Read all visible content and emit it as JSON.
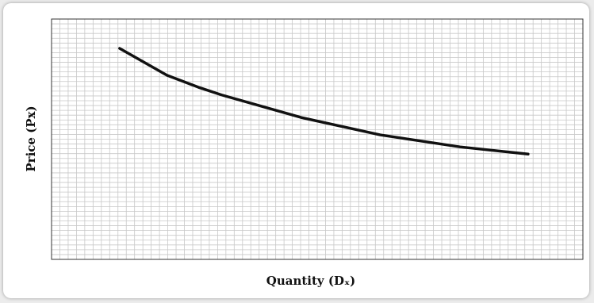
{
  "chart_data": {
    "type": "line",
    "ylabel": "Price (Px)",
    "xlabel": "Quantity (Dₓ)",
    "x": [
      8.2,
      13.9,
      17.7,
      20.5,
      30.1,
      39.6,
      49.2,
      57.4
    ],
    "series": [
      {
        "color": "#111111",
        "values": [
          43.9,
          38.3,
          35.8,
          34.2,
          29.5,
          25.9,
          23.4,
          21.9
        ]
      }
    ],
    "xlim": [
      0,
      64
    ],
    "ylim": [
      0,
      50
    ],
    "xticks": [
      0,
      1,
      2,
      3,
      4,
      5,
      6,
      7,
      8,
      9,
      10,
      11,
      12,
      13,
      14,
      15,
      16,
      17,
      18,
      19,
      20,
      21,
      22,
      23,
      24,
      25,
      26,
      27,
      28,
      29,
      30,
      31,
      32,
      33,
      34,
      35,
      36,
      37,
      38,
      39,
      40,
      41,
      42,
      43,
      44,
      45,
      46,
      47,
      48,
      49,
      50,
      51,
      52,
      53,
      54,
      55,
      56,
      57,
      58,
      59,
      60,
      61,
      62,
      63,
      64
    ],
    "yticks": [
      0,
      1,
      2,
      3,
      4,
      5,
      6,
      7,
      8,
      9,
      10,
      11,
      12,
      13,
      14,
      15,
      16,
      17,
      18,
      19,
      20,
      21,
      22,
      23,
      24,
      25,
      26,
      27,
      28,
      29,
      30,
      31,
      32,
      33,
      34,
      35,
      36,
      37,
      38,
      39,
      40,
      41,
      42,
      43,
      44,
      45,
      46,
      47,
      48,
      49,
      50
    ],
    "tick_labels": false,
    "grid": true
  }
}
